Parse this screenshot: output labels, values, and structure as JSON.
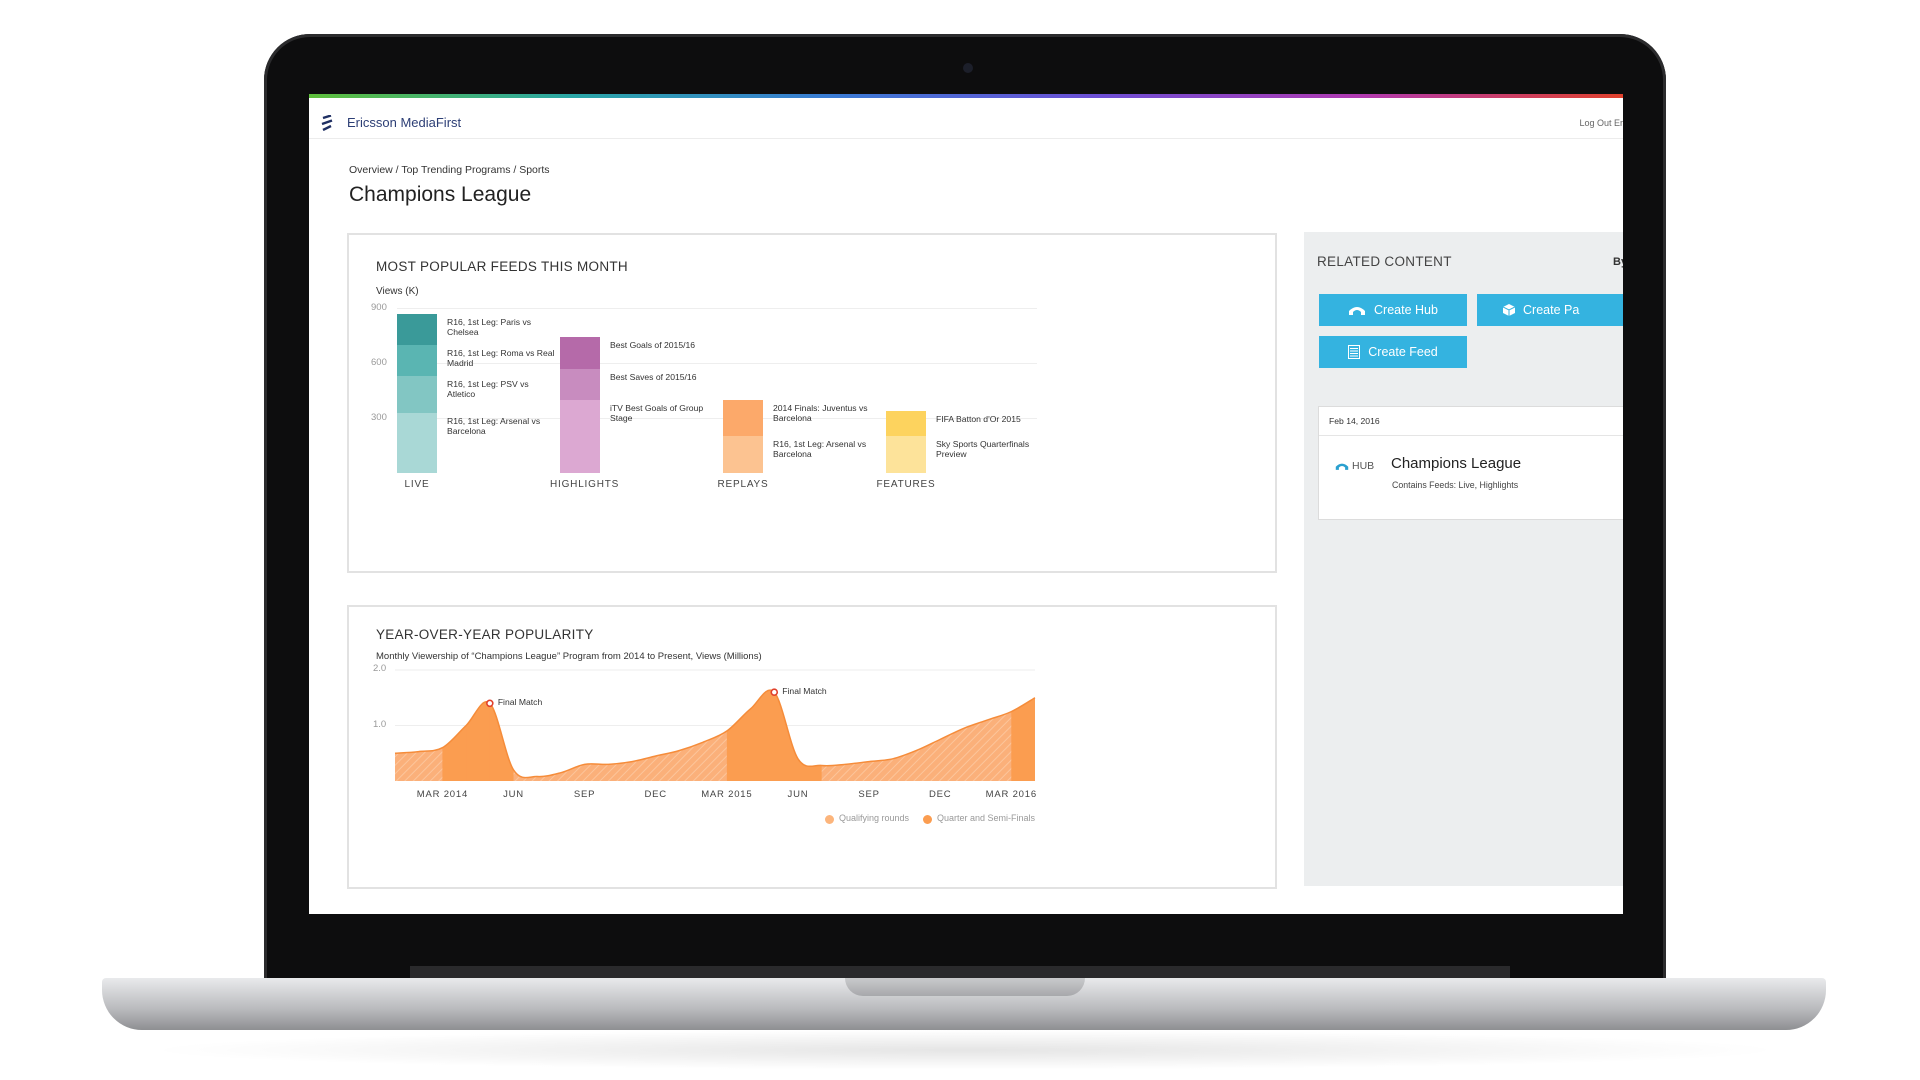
{
  "app": {
    "title": "Ericsson MediaFirst",
    "logout": "Log Out Er"
  },
  "breadcrumb": "Overview / Top Trending Programs / Sports",
  "page_title": "Champions League",
  "feeds_panel": {
    "title": "MOST POPULAR FEEDS THIS MONTH",
    "y_unit": "Views (K)",
    "y_ticks": [
      "900",
      "600",
      "300"
    ]
  },
  "yoy_panel": {
    "title": "YEAR-OVER-YEAR POPULARITY",
    "subtitle": "Monthly Viewership of “Champions League” Program from 2014 to Present, Views (Millions)",
    "y_ticks": [
      "2.0",
      "1.0"
    ],
    "x_ticks": [
      "MAR 2014",
      "JUN",
      "SEP",
      "DEC",
      "MAR 2015",
      "JUN",
      "SEP",
      "DEC",
      "MAR 2016"
    ],
    "annotations": [
      "Final Match",
      "Final Match"
    ],
    "legend": [
      "Qualifying rounds",
      "Quarter and Semi-Finals"
    ]
  },
  "related": {
    "title": "RELATED CONTENT",
    "by": "By",
    "buttons": {
      "create_hub": "Create Hub",
      "create_pa": "Create Pa",
      "create_feed": "Create Feed"
    },
    "card": {
      "date": "Feb 14, 2016",
      "type": "HUB",
      "name": "Champions League",
      "desc": "Contains Feeds: Live, Highlights"
    }
  },
  "colors": {
    "accent": "#34b3e0",
    "orange": "#fb9d50",
    "orange_light": "#fcb57c"
  },
  "chart_data": [
    {
      "type": "bar",
      "stacked": true,
      "ylabel": "Views (K)",
      "ylim": [
        0,
        900
      ],
      "categories": [
        "LIVE",
        "HIGHLIGHTS",
        "REPLAYS",
        "FEATURES"
      ],
      "stacks": [
        {
          "category": "LIVE",
          "segments": [
            {
              "label": "R16, 1st Leg: Arsenal vs Barcelona",
              "value": 330,
              "color": "#a9d8d6"
            },
            {
              "label": "R16, 1st Leg: PSV vs Atletico",
              "value": 200,
              "color": "#82c6c3"
            },
            {
              "label": "R16, 1st Leg: Roma vs Real Madrid",
              "value": 170,
              "color": "#5ab5b2"
            },
            {
              "label": "R16, 1st Leg: Paris vs Chelsea",
              "value": 170,
              "color": "#3a9a99"
            }
          ]
        },
        {
          "category": "HIGHLIGHTS",
          "segments": [
            {
              "label": "iTV Best Goals of Group Stage",
              "value": 400,
              "color": "#dca8d2"
            },
            {
              "label": "Best Saves of 2015/16",
              "value": 170,
              "color": "#c88cbf"
            },
            {
              "label": "Best Goals of 2015/16",
              "value": 170,
              "color": "#b56aa9"
            }
          ]
        },
        {
          "category": "REPLAYS",
          "segments": [
            {
              "label": "R16, 1st Leg: Arsenal vs Barcelona",
              "value": 200,
              "color": "#fcc391"
            },
            {
              "label": "2014 Finals: Juventus vs Barcelona",
              "value": 200,
              "color": "#fca96a"
            }
          ]
        },
        {
          "category": "FEATURES",
          "segments": [
            {
              "label": "Sky Sports Quarterfinals Preview",
              "value": 200,
              "color": "#fde39a"
            },
            {
              "label": "FIFA Batton d'Or 2015",
              "value": 140,
              "color": "#fdd35e"
            }
          ]
        }
      ]
    },
    {
      "type": "area",
      "title": "YEAR-OVER-YEAR POPULARITY",
      "ylabel": "Views (Millions)",
      "ylim": [
        0,
        2.0
      ],
      "x": [
        "Jan 2014",
        "Feb 2014",
        "Mar 2014",
        "Apr 2014",
        "May 2014",
        "Jun 2014",
        "Jul 2014",
        "Aug 2014",
        "Sep 2014",
        "Oct 2014",
        "Nov 2014",
        "Dec 2014",
        "Jan 2015",
        "Feb 2015",
        "Mar 2015",
        "Apr 2015",
        "May 2015",
        "Jun 2015",
        "Jul 2015",
        "Aug 2015",
        "Sep 2015",
        "Oct 2015",
        "Nov 2015",
        "Dec 2015",
        "Jan 2016",
        "Feb 2016",
        "Mar 2016",
        "Apr 2016"
      ],
      "values": [
        0.5,
        0.53,
        0.6,
        1.0,
        1.4,
        0.2,
        0.08,
        0.15,
        0.3,
        0.3,
        0.35,
        0.45,
        0.55,
        0.7,
        0.9,
        1.3,
        1.6,
        0.4,
        0.28,
        0.3,
        0.35,
        0.4,
        0.55,
        0.75,
        0.95,
        1.1,
        1.25,
        1.5
      ],
      "phases": [
        {
          "name": "Qualifying rounds",
          "color": "#fcb57c"
        },
        {
          "name": "Quarter and Semi-Finals",
          "color": "#fb9d50"
        }
      ],
      "annotations": [
        {
          "x": "May 2014",
          "y": 1.4,
          "text": "Final Match"
        },
        {
          "x": "May 2015",
          "y": 1.6,
          "text": "Final Match"
        }
      ],
      "legend": "bottom-right"
    }
  ]
}
